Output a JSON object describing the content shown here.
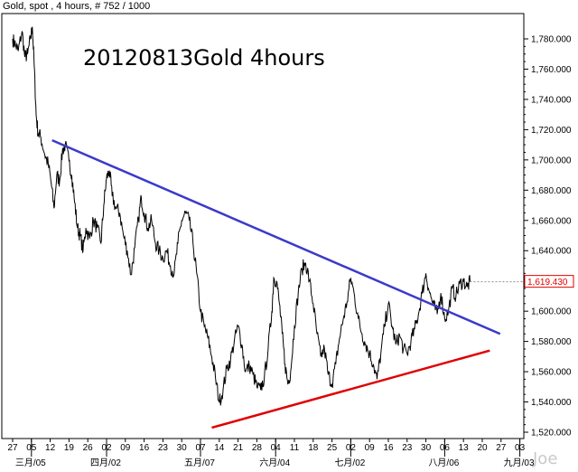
{
  "header": {
    "text": "Gold, spot , 4 hours, # 752 / 1000"
  },
  "watermark": "Joe",
  "chart_data": {
    "type": "line",
    "title": "20120813Gold 4hours",
    "ylim": [
      1518,
      1796
    ],
    "y_ticks": [
      1520,
      1540,
      1560,
      1580,
      1600,
      1620,
      1640,
      1660,
      1680,
      1700,
      1720,
      1740,
      1760,
      1780
    ],
    "y_tick_labels": [
      "1,520.000",
      "1,540.000",
      "1,560.000",
      "1,580.000",
      "1,600.000",
      "1,620.000",
      "1,640.000",
      "1,660.000",
      "1,680.000",
      "1,700.000",
      "1,720.000",
      "1,740.000",
      "1,760.000",
      "1,780.000"
    ],
    "x_ticks": [
      "27",
      "05",
      "12",
      "19",
      "26",
      "02",
      "09",
      "16",
      "23",
      "30",
      "07",
      "14",
      "21",
      "28",
      "04",
      "11",
      "18",
      "25",
      "02",
      "09",
      "16",
      "23",
      "30",
      "06",
      "13",
      "20",
      "27",
      "03"
    ],
    "x_month_labels": [
      {
        "label": "三月/05",
        "tick_index": 1
      },
      {
        "label": "四月/02",
        "tick_index": 5
      },
      {
        "label": "五月/07",
        "tick_index": 10
      },
      {
        "label": "六月/04",
        "tick_index": 14
      },
      {
        "label": "七月/02",
        "tick_index": 18
      },
      {
        "label": "八月/06",
        "tick_index": 23
      },
      {
        "label": "九月/03",
        "tick_index": 27
      }
    ],
    "last_price": {
      "value": 1619.43,
      "label": "1,619.430"
    },
    "series": [
      {
        "values": [
          [
            0,
            1780
          ],
          [
            0.15,
            1776
          ],
          [
            0.3,
            1772
          ],
          [
            0.5,
            1785
          ],
          [
            0.65,
            1768
          ],
          [
            0.8,
            1770
          ],
          [
            0.95,
            1780
          ],
          [
            1.05,
            1788
          ],
          [
            1.15,
            1762
          ],
          [
            1.25,
            1730
          ],
          [
            1.35,
            1718
          ],
          [
            1.5,
            1715
          ],
          [
            1.7,
            1704
          ],
          [
            1.9,
            1697
          ],
          [
            2.05,
            1685
          ],
          [
            2.2,
            1668
          ],
          [
            2.35,
            1690
          ],
          [
            2.5,
            1686
          ],
          [
            2.65,
            1706
          ],
          [
            2.8,
            1710
          ],
          [
            3.0,
            1699
          ],
          [
            3.15,
            1690
          ],
          [
            3.3,
            1672
          ],
          [
            3.45,
            1655
          ],
          [
            3.6,
            1650
          ],
          [
            3.75,
            1640
          ],
          [
            3.9,
            1655
          ],
          [
            4.1,
            1648
          ],
          [
            4.3,
            1660
          ],
          [
            4.5,
            1655
          ],
          [
            4.7,
            1645
          ],
          [
            4.85,
            1670
          ],
          [
            5.0,
            1688
          ],
          [
            5.15,
            1693
          ],
          [
            5.3,
            1676
          ],
          [
            5.5,
            1668
          ],
          [
            5.7,
            1665
          ],
          [
            5.9,
            1650
          ],
          [
            6.1,
            1640
          ],
          [
            6.3,
            1624
          ],
          [
            6.5,
            1642
          ],
          [
            6.7,
            1661
          ],
          [
            6.85,
            1675
          ],
          [
            7.0,
            1665
          ],
          [
            7.2,
            1655
          ],
          [
            7.4,
            1660
          ],
          [
            7.6,
            1645
          ],
          [
            7.8,
            1640
          ],
          [
            8.0,
            1635
          ],
          [
            8.2,
            1640
          ],
          [
            8.4,
            1630
          ],
          [
            8.6,
            1625
          ],
          [
            8.8,
            1645
          ],
          [
            9.0,
            1660
          ],
          [
            9.2,
            1665
          ],
          [
            9.4,
            1660
          ],
          [
            9.6,
            1645
          ],
          [
            9.8,
            1625
          ],
          [
            10.0,
            1600
          ],
          [
            10.2,
            1590
          ],
          [
            10.4,
            1582
          ],
          [
            10.6,
            1570
          ],
          [
            10.8,
            1556
          ],
          [
            11.0,
            1540
          ],
          [
            11.2,
            1548
          ],
          [
            11.4,
            1562
          ],
          [
            11.6,
            1568
          ],
          [
            11.8,
            1580
          ],
          [
            12.0,
            1590
          ],
          [
            12.2,
            1578
          ],
          [
            12.4,
            1560
          ],
          [
            12.6,
            1564
          ],
          [
            12.8,
            1558
          ],
          [
            13.0,
            1550
          ],
          [
            13.2,
            1548
          ],
          [
            13.4,
            1556
          ],
          [
            13.6,
            1575
          ],
          [
            13.8,
            1600
          ],
          [
            13.9,
            1622
          ],
          [
            14.05,
            1620
          ],
          [
            14.2,
            1605
          ],
          [
            14.35,
            1585
          ],
          [
            14.5,
            1565
          ],
          [
            14.65,
            1552
          ],
          [
            14.8,
            1560
          ],
          [
            15.0,
            1590
          ],
          [
            15.2,
            1612
          ],
          [
            15.4,
            1628
          ],
          [
            15.6,
            1632
          ],
          [
            15.8,
            1620
          ],
          [
            16.0,
            1605
          ],
          [
            16.2,
            1585
          ],
          [
            16.4,
            1570
          ],
          [
            16.6,
            1575
          ],
          [
            16.8,
            1558
          ],
          [
            17.0,
            1552
          ],
          [
            17.2,
            1565
          ],
          [
            17.4,
            1582
          ],
          [
            17.6,
            1595
          ],
          [
            17.8,
            1606
          ],
          [
            18.0,
            1622
          ],
          [
            18.2,
            1610
          ],
          [
            18.4,
            1595
          ],
          [
            18.6,
            1585
          ],
          [
            18.8,
            1578
          ],
          [
            19.0,
            1572
          ],
          [
            19.2,
            1565
          ],
          [
            19.4,
            1555
          ],
          [
            19.6,
            1572
          ],
          [
            19.8,
            1590
          ],
          [
            20.0,
            1605
          ],
          [
            20.2,
            1590
          ],
          [
            20.4,
            1578
          ],
          [
            20.6,
            1584
          ],
          [
            20.8,
            1575
          ],
          [
            21.0,
            1572
          ],
          [
            21.2,
            1580
          ],
          [
            21.4,
            1588
          ],
          [
            21.6,
            1598
          ],
          [
            21.8,
            1612
          ],
          [
            22.0,
            1625
          ],
          [
            22.2,
            1612
          ],
          [
            22.4,
            1604
          ],
          [
            22.6,
            1598
          ],
          [
            22.8,
            1612
          ],
          [
            23.0,
            1595
          ],
          [
            23.2,
            1600
          ],
          [
            23.4,
            1615
          ],
          [
            23.6,
            1610
          ],
          [
            23.8,
            1618
          ],
          [
            24.0,
            1620
          ],
          [
            24.2,
            1616
          ],
          [
            24.35,
            1619.43
          ]
        ]
      }
    ],
    "trendlines": [
      {
        "color": "#3a3acb",
        "points": [
          [
            2.1,
            1713
          ],
          [
            25.95,
            1585
          ]
        ]
      },
      {
        "color": "#e00000",
        "points": [
          [
            10.6,
            1523
          ],
          [
            25.4,
            1574
          ]
        ]
      }
    ],
    "colors": {
      "price": "#000000",
      "last_price_box": "#e00000"
    }
  }
}
